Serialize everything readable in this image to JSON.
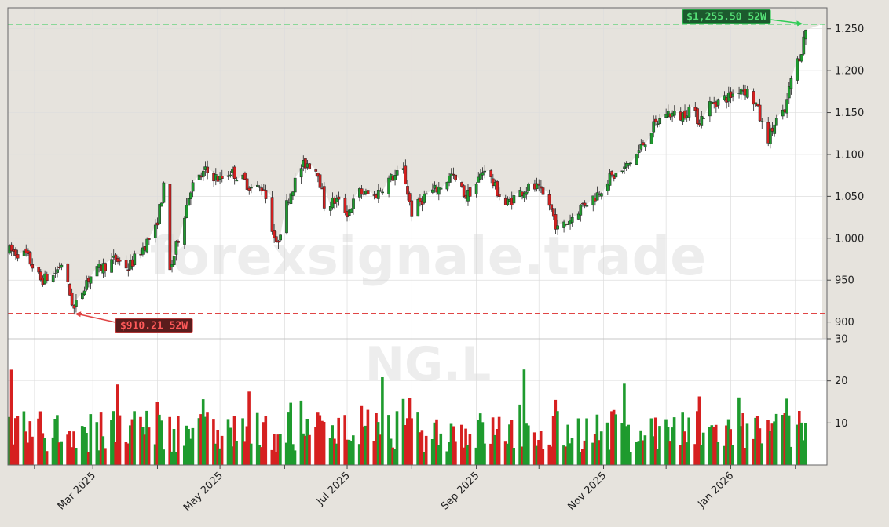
{
  "chart_data": {
    "type": "candlestick",
    "ticker_watermark": "NG.L",
    "site_watermark": "forexsignale.trade",
    "price_axis": {
      "ylim": [
        880,
        1275
      ],
      "ticks": [
        900,
        950,
        "1.000",
        "1.050",
        "1.100",
        "1.150",
        "1.200",
        "1.250"
      ],
      "tick_values": [
        900,
        950,
        1000,
        1050,
        1100,
        1150,
        1200,
        1250
      ]
    },
    "volume_axis": {
      "ylim": [
        0,
        30
      ],
      "ticks": [
        "10",
        "20",
        "30"
      ],
      "tick_values": [
        10,
        20,
        30
      ]
    },
    "x_axis": {
      "start": "2025-01-20",
      "end": "2026-02-06",
      "labels": [
        {
          "date": "2025-03-01",
          "text": "Mar 2025"
        },
        {
          "date": "2025-05-01",
          "text": "May 2025"
        },
        {
          "date": "2025-07-01",
          "text": "Jul 2025"
        },
        {
          "date": "2025-09-01",
          "text": "Sep 2025"
        },
        {
          "date": "2025-11-01",
          "text": "Nov 2025"
        },
        {
          "date": "2026-01-01",
          "text": "Jan 2026"
        }
      ],
      "minor_months": [
        "2025-02-01",
        "2025-04-01",
        "2025-06-01",
        "2025-08-01",
        "2025-10-01",
        "2025-12-01",
        "2026-02-01"
      ]
    },
    "high_52w": {
      "value": 1255.5,
      "label": "$1,255.50 52W",
      "date": "2026-02-05"
    },
    "low_52w": {
      "value": 910.21,
      "label": "$910.21 52W",
      "date": "2025-02-20"
    },
    "price_path": [
      [
        "2025-01-20",
        985
      ],
      [
        "2025-01-28",
        980
      ],
      [
        "2025-02-04",
        950
      ],
      [
        "2025-02-10",
        955
      ],
      [
        "2025-02-14",
        970
      ],
      [
        "2025-02-20",
        915
      ],
      [
        "2025-02-26",
        950
      ],
      [
        "2025-03-05",
        965
      ],
      [
        "2025-03-12",
        975
      ],
      [
        "2025-03-18",
        965
      ],
      [
        "2025-03-24",
        985
      ],
      [
        "2025-03-31",
        1010
      ],
      [
        "2025-04-04",
        1060
      ],
      [
        "2025-04-07",
        960
      ],
      [
        "2025-04-11",
        1000
      ],
      [
        "2025-04-17",
        1060
      ],
      [
        "2025-04-24",
        1080
      ],
      [
        "2025-05-01",
        1070
      ],
      [
        "2025-05-06",
        1080
      ],
      [
        "2025-05-12",
        1070
      ],
      [
        "2025-05-16",
        1060
      ],
      [
        "2025-05-22",
        1060
      ],
      [
        "2025-05-28",
        990
      ],
      [
        "2025-06-03",
        1050
      ],
      [
        "2025-06-09",
        1085
      ],
      [
        "2025-06-12",
        1090
      ],
      [
        "2025-06-17",
        1080
      ],
      [
        "2025-06-20",
        1040
      ],
      [
        "2025-06-26",
        1045
      ],
      [
        "2025-07-01",
        1030
      ],
      [
        "2025-07-07",
        1055
      ],
      [
        "2025-07-14",
        1050
      ],
      [
        "2025-07-21",
        1070
      ],
      [
        "2025-07-28",
        1080
      ],
      [
        "2025-08-01",
        1030
      ],
      [
        "2025-08-07",
        1050
      ],
      [
        "2025-08-14",
        1060
      ],
      [
        "2025-08-20",
        1075
      ],
      [
        "2025-08-27",
        1050
      ],
      [
        "2025-09-01",
        1065
      ],
      [
        "2025-09-05",
        1085
      ],
      [
        "2025-09-10",
        1060
      ],
      [
        "2025-09-15",
        1040
      ],
      [
        "2025-09-22",
        1055
      ],
      [
        "2025-09-26",
        1060
      ],
      [
        "2025-09-30",
        1060
      ],
      [
        "2025-10-06",
        1040
      ],
      [
        "2025-10-10",
        1010
      ],
      [
        "2025-10-15",
        1020
      ],
      [
        "2025-10-22",
        1040
      ],
      [
        "2025-10-28",
        1050
      ],
      [
        "2025-11-03",
        1070
      ],
      [
        "2025-11-10",
        1080
      ],
      [
        "2025-11-17",
        1100
      ],
      [
        "2025-11-24",
        1130
      ],
      [
        "2025-12-01",
        1150
      ],
      [
        "2025-12-08",
        1145
      ],
      [
        "2025-12-12",
        1155
      ],
      [
        "2025-12-17",
        1140
      ],
      [
        "2025-12-22",
        1160
      ],
      [
        "2026-01-01",
        1170
      ],
      [
        "2026-01-06",
        1180
      ],
      [
        "2026-01-09",
        1175
      ],
      [
        "2026-01-13",
        1160
      ],
      [
        "2026-01-16",
        1135
      ],
      [
        "2026-01-19",
        1120
      ],
      [
        "2026-01-23",
        1140
      ],
      [
        "2026-01-27",
        1150
      ],
      [
        "2026-01-30",
        1190
      ],
      [
        "2026-02-04",
        1225
      ],
      [
        "2026-02-06",
        1250
      ]
    ],
    "volume_range": [
      1,
      28
    ]
  }
}
